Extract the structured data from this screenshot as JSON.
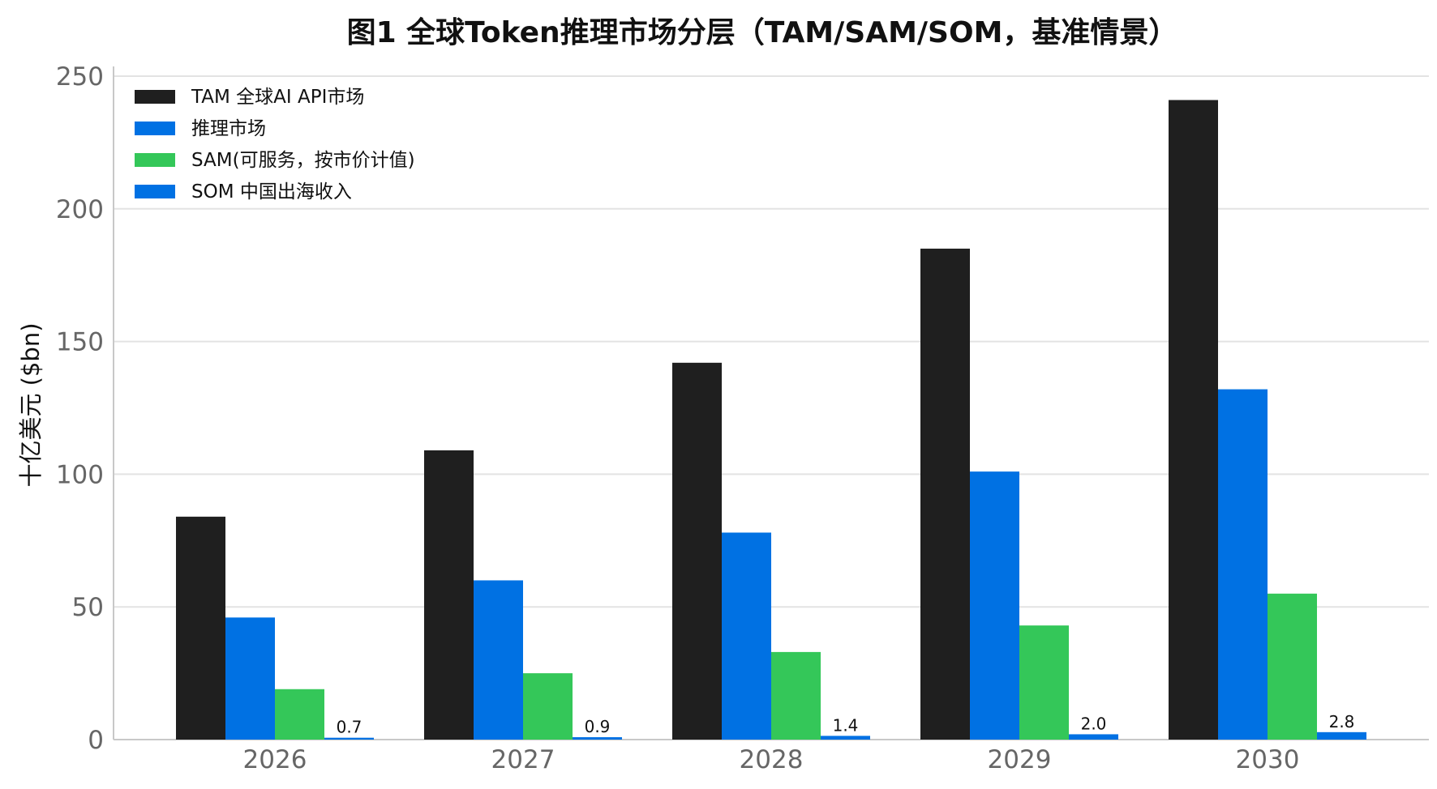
{
  "chart_data": {
    "type": "bar",
    "title": "图1 全球Token推理市场分层（TAM/SAM/SOM，基准情景）",
    "ylabel": "十亿美元 ($bn)",
    "xlabel": "",
    "categories": [
      "2026",
      "2027",
      "2028",
      "2029",
      "2030"
    ],
    "ylim": [
      0,
      250
    ],
    "yticks": [
      0,
      50,
      100,
      150,
      200,
      250
    ],
    "grid": "horizontal",
    "legend_position": "top-left",
    "series": [
      {
        "name": "TAM 全球AI API市场",
        "color": "#1f1f1f",
        "values": [
          84,
          109,
          142,
          185,
          241
        ]
      },
      {
        "name": "推理市场",
        "color": "#0071e3",
        "values": [
          46,
          60,
          78,
          101,
          132
        ]
      },
      {
        "name": "SAM(可服务，按市价计值)",
        "color": "#34c759",
        "values": [
          19,
          25,
          33,
          43,
          55
        ]
      },
      {
        "name": "SOM 中国出海收入",
        "color": "#0071e3",
        "values": [
          0.7,
          0.9,
          1.4,
          2.0,
          2.8
        ],
        "data_labels": [
          "0.7",
          "0.9",
          "1.4",
          "2.0",
          "2.8"
        ]
      }
    ]
  }
}
